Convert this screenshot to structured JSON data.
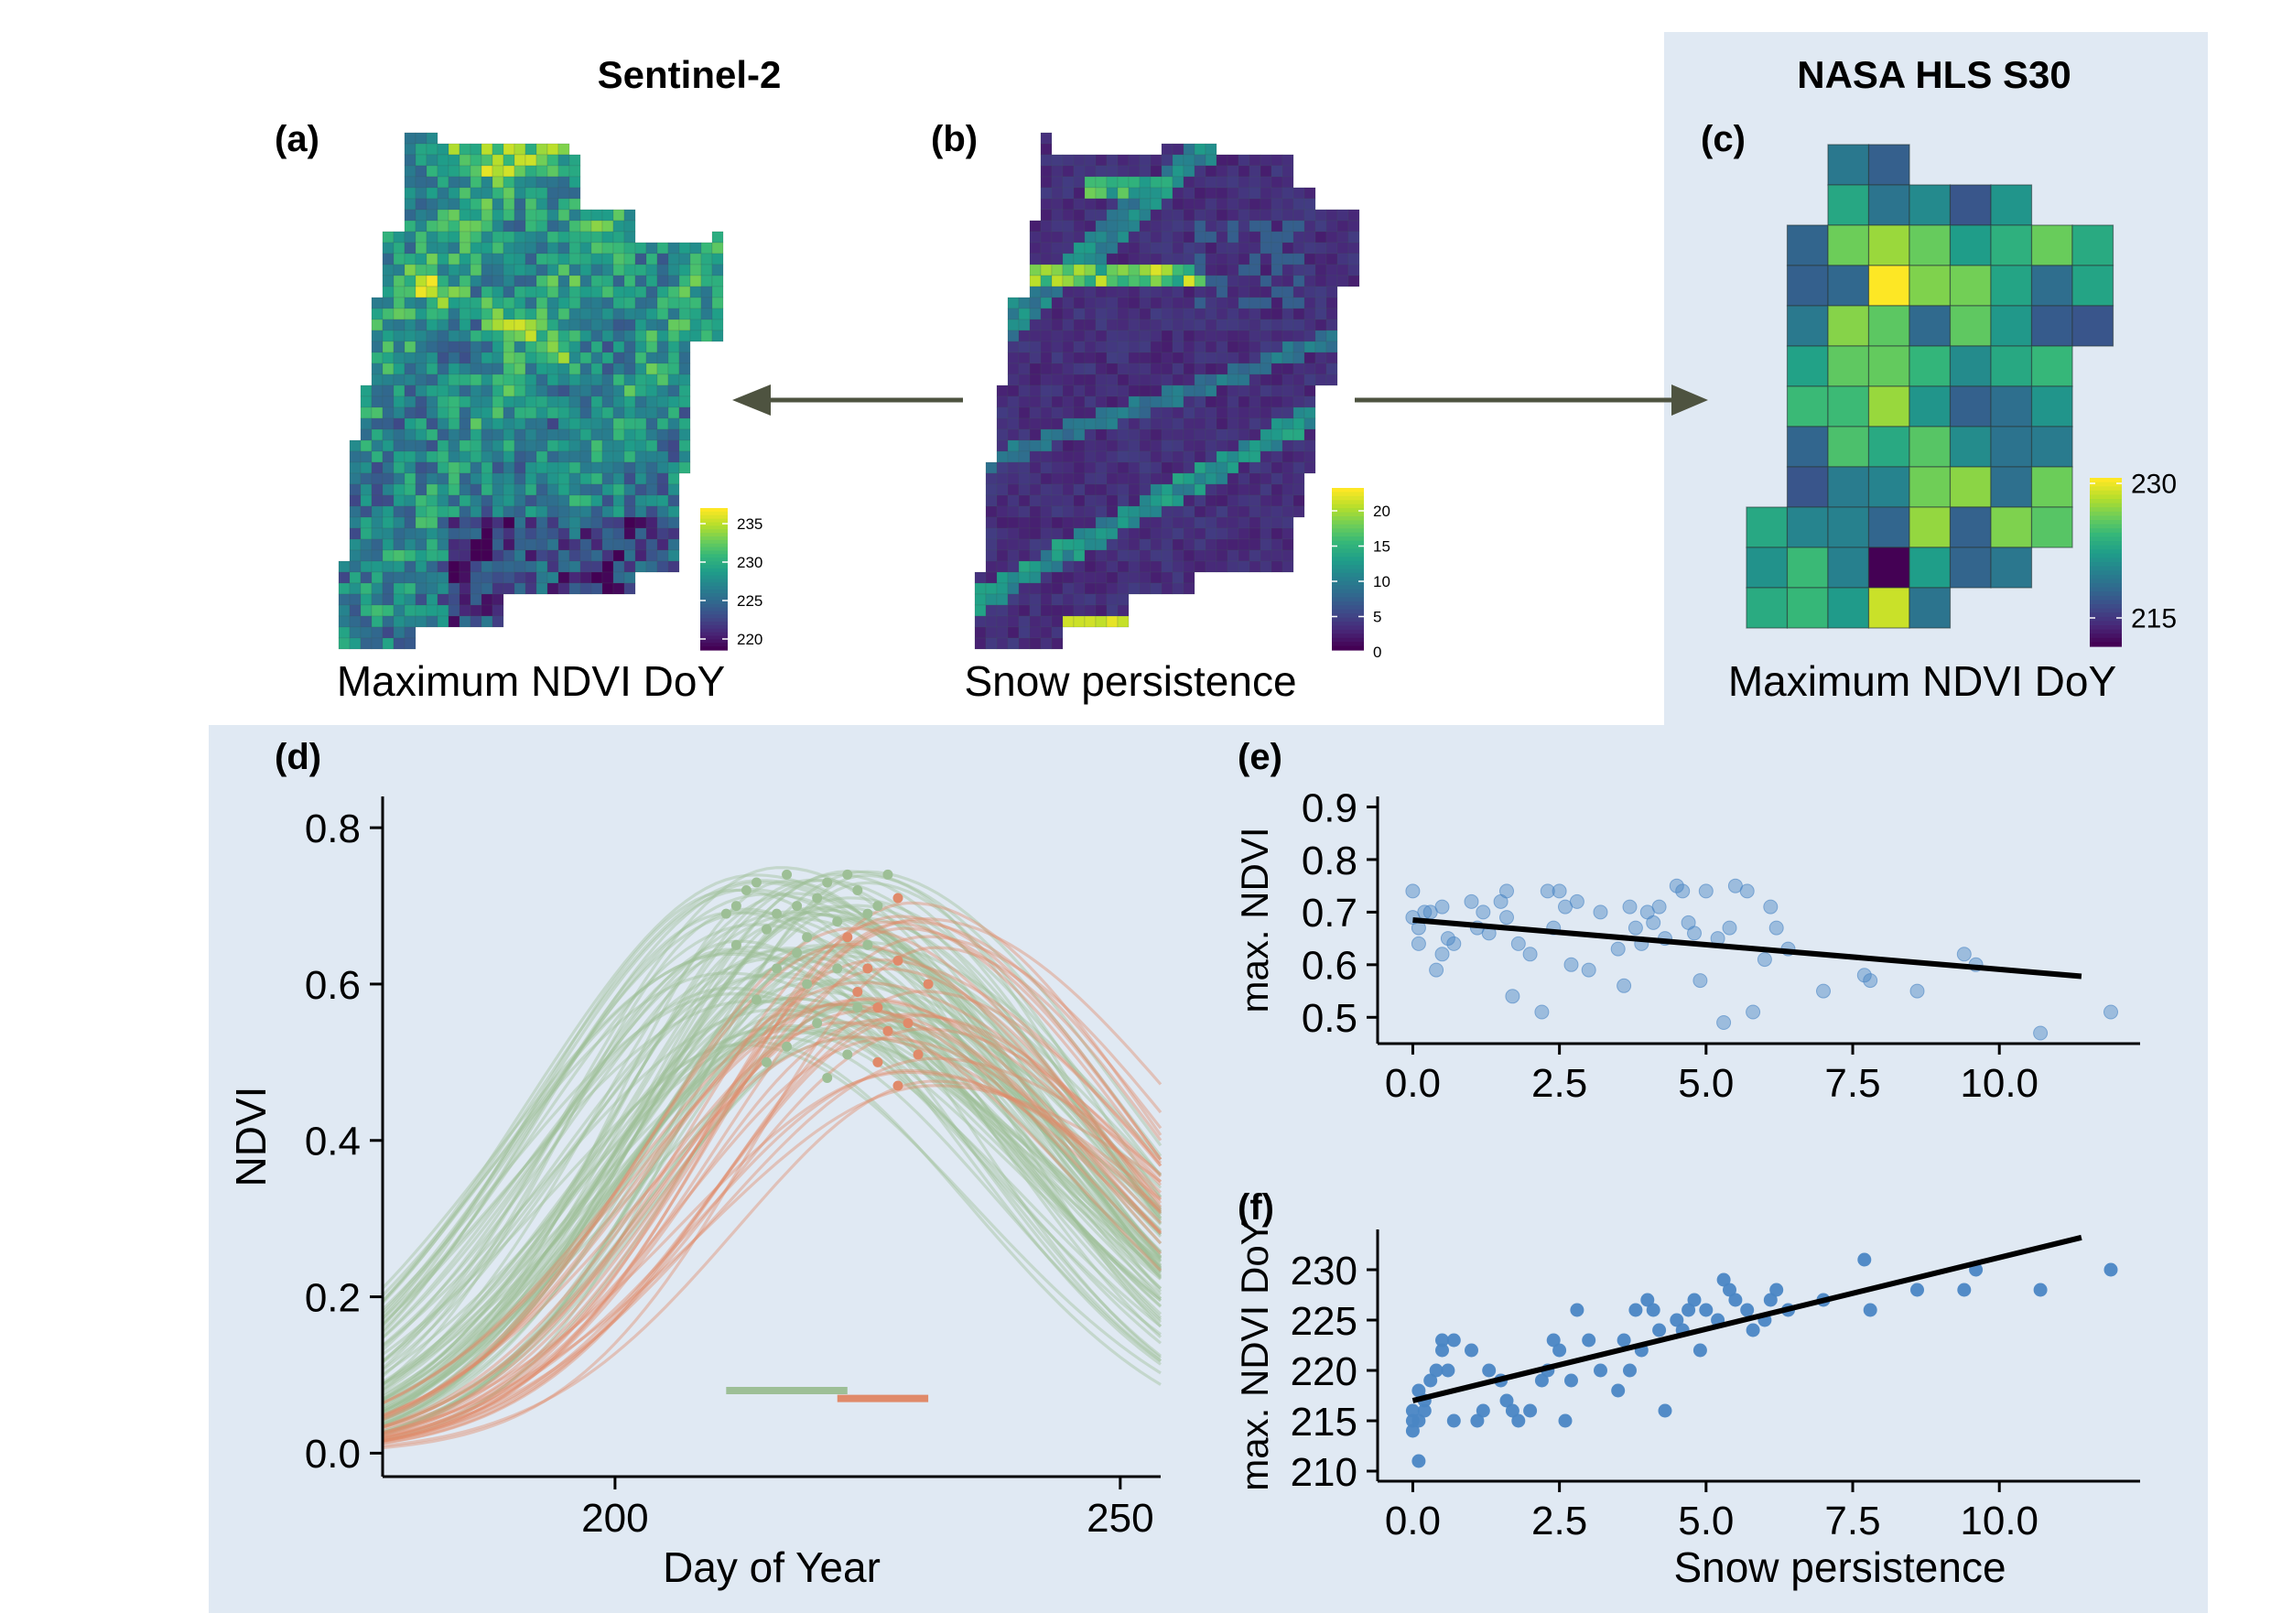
{
  "figure": {
    "header_left": "Sentinel-2",
    "header_right": "NASA HLS S30",
    "colors": {
      "highlight_bg": "#e0e9f3",
      "arrow": "#4e5340",
      "early": "#9dbf96",
      "late": "#e08a6a",
      "scatter": "#4a86c4",
      "trend": "#000000"
    }
  },
  "panels": {
    "a": {
      "tag": "(a)",
      "caption": "Maximum NDVI DoY",
      "colorbar_ticks": [
        "235",
        "230",
        "225",
        "220"
      ],
      "colormap": "viridis"
    },
    "b": {
      "tag": "(b)",
      "caption": "Snow persistence",
      "colorbar_ticks": [
        "20",
        "15",
        "10",
        "5",
        "0"
      ],
      "colormap": "viridis"
    },
    "c": {
      "tag": "(c)",
      "caption": "Maximum NDVI DoY",
      "colorbar_ticks": [
        "230",
        "215"
      ],
      "colormap": "viridis"
    },
    "d": {
      "tag": "(d)"
    },
    "e": {
      "tag": "(e)"
    },
    "f": {
      "tag": "(f)"
    }
  },
  "chart_data": [
    {
      "panel": "d",
      "type": "line",
      "xlabel": "Day of Year",
      "ylabel": "NDVI",
      "xlim": [
        177,
        254
      ],
      "ylim": [
        -0.03,
        0.84
      ],
      "xticks": [
        "200",
        "250"
      ],
      "yticks": [
        "0.0",
        "0.2",
        "0.4",
        "0.6",
        "0.8"
      ],
      "curve_counts": {
        "early": 80,
        "late": 30
      },
      "peak_points": {
        "early": [
          [
            211,
            0.69
          ],
          [
            212,
            0.7
          ],
          [
            213,
            0.72
          ],
          [
            214,
            0.73
          ],
          [
            215,
            0.67
          ],
          [
            216,
            0.62
          ],
          [
            217,
            0.74
          ],
          [
            218,
            0.7
          ],
          [
            219,
            0.66
          ],
          [
            220,
            0.71
          ],
          [
            221,
            0.73
          ],
          [
            222,
            0.68
          ],
          [
            223,
            0.74
          ],
          [
            224,
            0.72
          ],
          [
            225,
            0.69
          ],
          [
            226,
            0.7
          ],
          [
            227,
            0.74
          ],
          [
            218,
            0.64
          ],
          [
            219,
            0.6
          ],
          [
            214,
            0.58
          ],
          [
            215,
            0.5
          ],
          [
            217,
            0.52
          ],
          [
            220,
            0.55
          ],
          [
            221,
            0.48
          ],
          [
            223,
            0.51
          ],
          [
            224,
            0.57
          ],
          [
            225,
            0.65
          ],
          [
            212,
            0.65
          ],
          [
            216,
            0.69
          ],
          [
            222,
            0.62
          ]
        ],
        "late": [
          [
            223,
            0.66
          ],
          [
            224,
            0.59
          ],
          [
            225,
            0.62
          ],
          [
            226,
            0.57
          ],
          [
            227,
            0.54
          ],
          [
            228,
            0.63
          ],
          [
            229,
            0.55
          ],
          [
            230,
            0.51
          ],
          [
            231,
            0.6
          ],
          [
            228,
            0.47
          ],
          [
            228,
            0.71
          ],
          [
            226,
            0.5
          ]
        ]
      },
      "bars": {
        "early": [
          211,
          223
        ],
        "late": [
          222,
          231
        ],
        "y": [
          0.08,
          0.07
        ]
      }
    },
    {
      "panel": "e",
      "type": "scatter",
      "xlabel": "",
      "ylabel": "max. NDVI",
      "xlim": [
        -0.6,
        12.4
      ],
      "ylim": [
        0.45,
        0.92
      ],
      "xticks": [
        "0.0",
        "2.5",
        "5.0",
        "7.5",
        "10.0"
      ],
      "yticks": [
        "0.5",
        "0.6",
        "0.7",
        "0.8",
        "0.9"
      ],
      "trendline": [
        [
          0,
          0.685
        ],
        [
          11.4,
          0.578
        ]
      ],
      "x": [
        0,
        0,
        0.1,
        0.1,
        0.2,
        0.3,
        0.4,
        0.5,
        0.5,
        0.6,
        0.7,
        1.0,
        1.1,
        1.2,
        1.3,
        1.5,
        1.6,
        1.6,
        1.7,
        1.8,
        2.0,
        2.2,
        2.3,
        2.4,
        2.5,
        2.6,
        2.7,
        2.8,
        3.0,
        3.2,
        3.5,
        3.6,
        3.7,
        3.8,
        3.9,
        4.0,
        4.1,
        4.2,
        4.3,
        4.5,
        4.6,
        4.7,
        4.8,
        4.9,
        5.0,
        5.2,
        5.3,
        5.4,
        5.5,
        5.7,
        5.8,
        6.0,
        6.1,
        6.2,
        6.4,
        7.0,
        7.7,
        7.8,
        8.6,
        9.4,
        9.6,
        10.7,
        11.9
      ],
      "y": [
        0.74,
        0.69,
        0.67,
        0.64,
        0.7,
        0.7,
        0.59,
        0.71,
        0.62,
        0.65,
        0.64,
        0.72,
        0.67,
        0.7,
        0.66,
        0.72,
        0.74,
        0.69,
        0.54,
        0.64,
        0.62,
        0.51,
        0.74,
        0.67,
        0.74,
        0.71,
        0.6,
        0.72,
        0.59,
        0.7,
        0.63,
        0.56,
        0.71,
        0.67,
        0.64,
        0.7,
        0.68,
        0.71,
        0.65,
        0.75,
        0.74,
        0.68,
        0.66,
        0.57,
        0.74,
        0.65,
        0.49,
        0.67,
        0.75,
        0.74,
        0.51,
        0.61,
        0.71,
        0.67,
        0.63,
        0.55,
        0.58,
        0.57,
        0.55,
        0.62,
        0.6,
        0.47,
        0.51
      ]
    },
    {
      "panel": "f",
      "type": "scatter",
      "xlabel": "Snow persistence",
      "ylabel": "max. NDVI DoY",
      "xlim": [
        -0.6,
        12.4
      ],
      "ylim": [
        209,
        234
      ],
      "xticks": [
        "0.0",
        "2.5",
        "5.0",
        "7.5",
        "10.0"
      ],
      "yticks": [
        "210",
        "215",
        "220",
        "225",
        "230"
      ],
      "trendline": [
        [
          0,
          217.0
        ],
        [
          11.4,
          233.2
        ]
      ],
      "x": [
        0,
        0,
        0,
        0.1,
        0.1,
        0.1,
        0.2,
        0.2,
        0.3,
        0.4,
        0.5,
        0.5,
        0.6,
        0.7,
        0.7,
        1.0,
        1.1,
        1.2,
        1.3,
        1.5,
        1.6,
        1.7,
        1.8,
        2.0,
        2.2,
        2.3,
        2.4,
        2.5,
        2.6,
        2.7,
        2.8,
        3.0,
        3.2,
        3.5,
        3.6,
        3.7,
        3.8,
        3.9,
        4.0,
        4.1,
        4.2,
        4.3,
        4.5,
        4.6,
        4.7,
        4.8,
        4.9,
        5.0,
        5.2,
        5.3,
        5.4,
        5.5,
        5.7,
        5.8,
        6.0,
        6.1,
        6.2,
        6.4,
        7.0,
        7.7,
        7.8,
        8.6,
        9.4,
        9.6,
        10.7,
        11.9
      ],
      "y": [
        216,
        214,
        215,
        211,
        218,
        215,
        216,
        217,
        219,
        220,
        223,
        222,
        220,
        215,
        223,
        222,
        215,
        216,
        220,
        219,
        217,
        216,
        215,
        216,
        219,
        220,
        223,
        222,
        215,
        219,
        226,
        223,
        220,
        218,
        223,
        220,
        226,
        222,
        227,
        226,
        224,
        216,
        225,
        224,
        226,
        227,
        222,
        226,
        225,
        229,
        228,
        227,
        226,
        224,
        225,
        227,
        228,
        226,
        227,
        231,
        226,
        228,
        228,
        230,
        228,
        230
      ]
    }
  ]
}
